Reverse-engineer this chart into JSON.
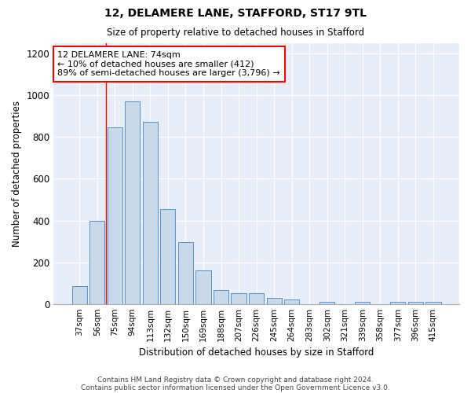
{
  "title1": "12, DELAMERE LANE, STAFFORD, ST17 9TL",
  "title2": "Size of property relative to detached houses in Stafford",
  "xlabel": "Distribution of detached houses by size in Stafford",
  "ylabel": "Number of detached properties",
  "categories": [
    "37sqm",
    "56sqm",
    "75sqm",
    "94sqm",
    "113sqm",
    "132sqm",
    "150sqm",
    "169sqm",
    "188sqm",
    "207sqm",
    "226sqm",
    "245sqm",
    "264sqm",
    "283sqm",
    "302sqm",
    "321sqm",
    "339sqm",
    "358sqm",
    "377sqm",
    "396sqm",
    "415sqm"
  ],
  "values": [
    85,
    400,
    845,
    970,
    875,
    455,
    295,
    160,
    65,
    50,
    50,
    30,
    20,
    0,
    10,
    0,
    10,
    0,
    10,
    10,
    10
  ],
  "bar_color": "#c9d9ec",
  "bar_edge_color": "#5b8fc4",
  "vline_x": 2.0,
  "annotation_text": "12 DELAMERE LANE: 74sqm\n← 10% of detached houses are smaller (412)\n89% of semi-detached houses are larger (3,796) →",
  "annotation_box_color": "white",
  "annotation_box_edge": "red",
  "ylim": [
    0,
    1250
  ],
  "yticks": [
    0,
    200,
    400,
    600,
    800,
    1000,
    1200
  ],
  "footer1": "Contains HM Land Registry data © Crown copyright and database right 2024.",
  "footer2": "Contains public sector information licensed under the Open Government Licence v3.0.",
  "bg_color": "#ffffff",
  "plot_bg_color": "#e8eef7"
}
